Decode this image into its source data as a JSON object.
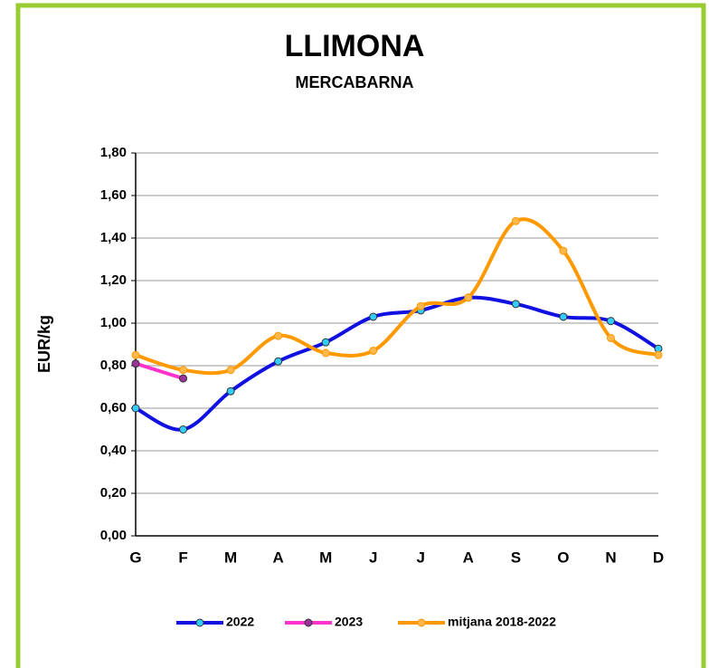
{
  "chart_data": {
    "type": "line",
    "title": "LLIMONA",
    "subtitle": "MERCABARNA",
    "y_label": "EUR/kg",
    "categories": [
      "G",
      "F",
      "M",
      "A",
      "M",
      "J",
      "J",
      "A",
      "S",
      "O",
      "N",
      "D"
    ],
    "series": [
      {
        "name": "2022",
        "color": "#1010e0",
        "marker_color": "#33ccff",
        "values": [
          0.6,
          0.5,
          0.68,
          0.82,
          0.91,
          1.03,
          1.06,
          1.12,
          1.09,
          1.03,
          1.01,
          0.88
        ]
      },
      {
        "name": "2023",
        "color": "#ff33cc",
        "marker_color": "#993399",
        "values": [
          0.81,
          0.74,
          null,
          null,
          null,
          null,
          null,
          null,
          null,
          null,
          null,
          null
        ]
      },
      {
        "name": "mitjana 2018-2022",
        "color": "#ff9900",
        "marker_color": "#ffb84d",
        "values": [
          0.85,
          0.78,
          0.78,
          0.94,
          0.86,
          0.87,
          1.08,
          1.12,
          1.48,
          1.34,
          0.93,
          0.85
        ]
      }
    ],
    "ylim": [
      0,
      1.8
    ],
    "yticks": [
      {
        "value": 0,
        "label": "0,00"
      },
      {
        "value": 0.2,
        "label": "0,20"
      },
      {
        "value": 0.4,
        "label": "0,40"
      },
      {
        "value": 0.6,
        "label": "0,60"
      },
      {
        "value": 0.8,
        "label": "0,80"
      },
      {
        "value": 1.0,
        "label": "1,00"
      },
      {
        "value": 1.2,
        "label": "1,20"
      },
      {
        "value": 1.4,
        "label": "1,40"
      },
      {
        "value": 1.6,
        "label": "1,60"
      },
      {
        "value": 1.8,
        "label": "1,80"
      }
    ],
    "grid": true,
    "legend": "bottom"
  }
}
